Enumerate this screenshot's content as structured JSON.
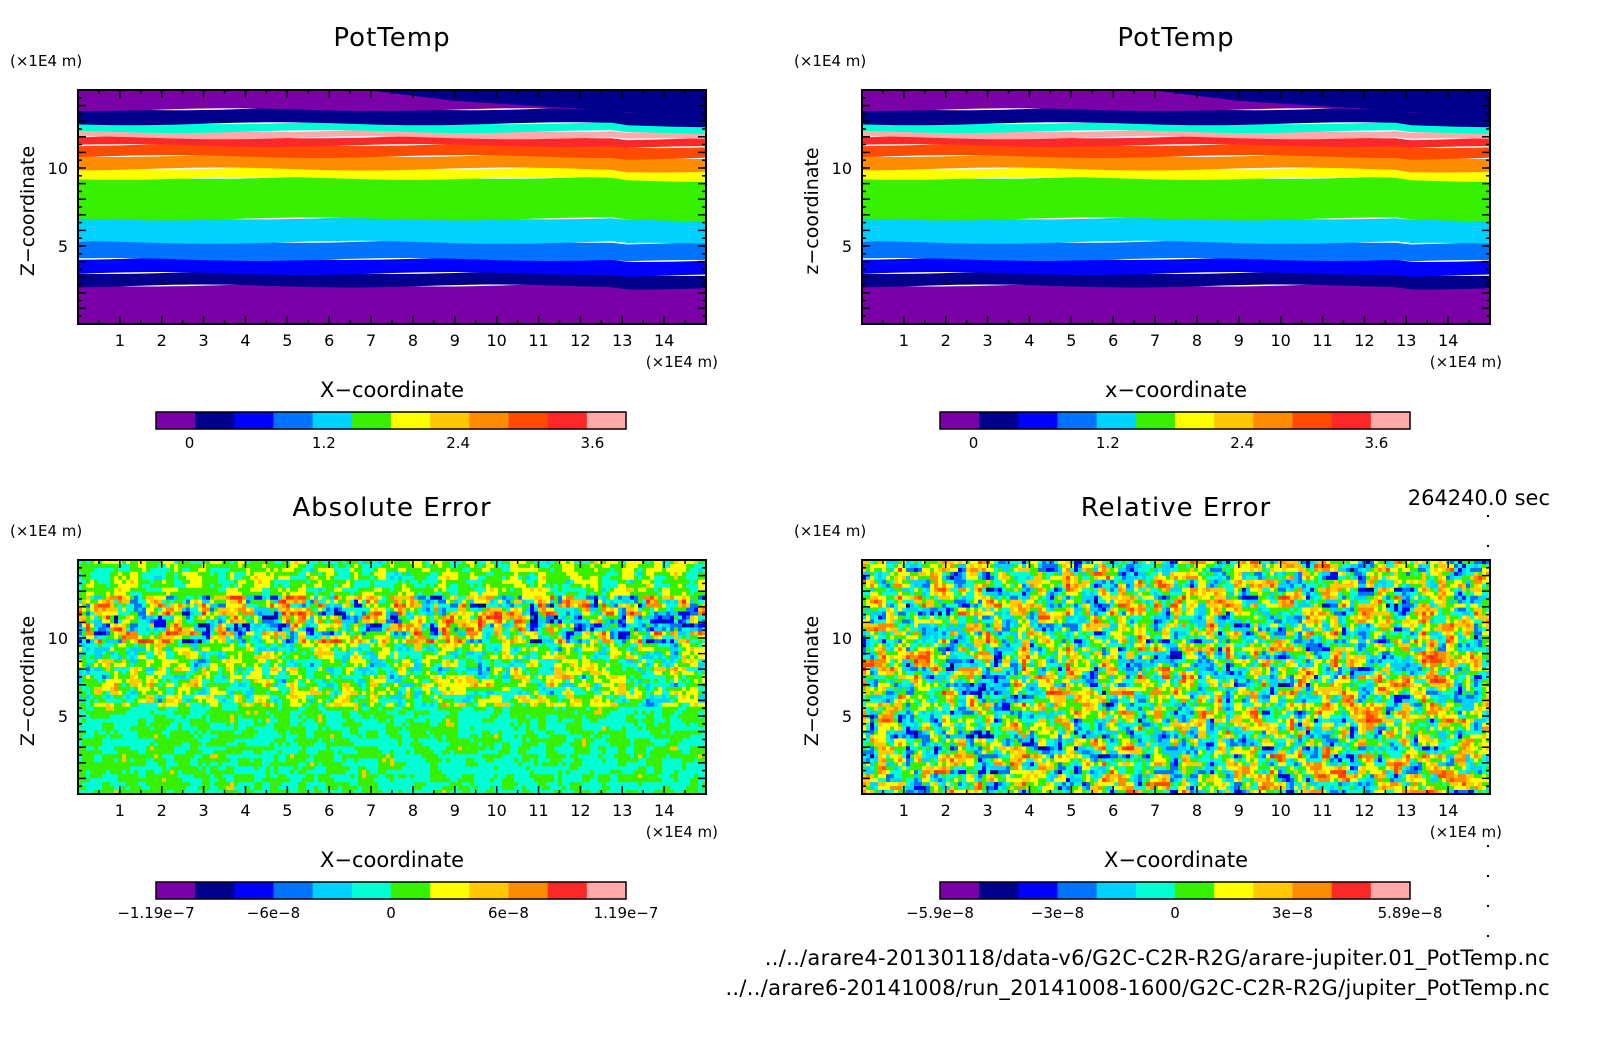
{
  "time_label": "264240.0 sec",
  "footer": {
    "line1": "../../arare4-20130118/data-v6/G2C-C2R-R2G/arare-jupiter.01_PotTemp.nc",
    "line2": "../../arare6-20141008/run_20141008-1600/G2C-C2R-R2G/jupiter_PotTemp.nc"
  },
  "colors": {
    "levels": [
      "#7a00a8",
      "#00008c",
      "#0000ff",
      "#0073ff",
      "#00d2ff",
      "#00ffd2",
      "#37f000",
      "#ffff00",
      "#ffc800",
      "#ff8c00",
      "#ff4b00",
      "#ff2828",
      "#ffaaaa"
    ]
  },
  "chart_data": [
    {
      "type": "heatmap",
      "title": "PotTemp",
      "xlabel": "X−coordinate",
      "ylabel": "Z−coordinate",
      "x_unit": "(×1E4 m)",
      "y_unit": "(×1E4 m)",
      "xlim": [
        0,
        15
      ],
      "ylim": [
        0,
        15
      ],
      "x_ticks": [
        1,
        2,
        3,
        4,
        5,
        6,
        7,
        8,
        9,
        10,
        11,
        12,
        13,
        14
      ],
      "y_ticks": [
        5,
        10
      ],
      "field": "horizontal bands",
      "z_bands": [
        {
          "z": [
            0,
            2.5
          ],
          "level": 0
        },
        {
          "z": [
            2.5,
            3.3
          ],
          "level": 1
        },
        {
          "z": [
            3.3,
            4.2
          ],
          "level": 2
        },
        {
          "z": [
            4.2,
            5.3
          ],
          "level": 3
        },
        {
          "z": [
            5.3,
            6.8
          ],
          "level": 4
        },
        {
          "z": [
            6.8,
            9.4
          ],
          "level": 6
        },
        {
          "z": [
            9.4,
            10.0
          ],
          "level": 7
        },
        {
          "z": [
            10.0,
            10.8
          ],
          "level": 9
        },
        {
          "z": [
            10.8,
            11.5
          ],
          "level": 10
        },
        {
          "z": [
            11.5,
            12.0
          ],
          "level": 11
        },
        {
          "z": [
            12.0,
            12.4
          ],
          "level": 12
        },
        {
          "z": [
            12.4,
            12.9
          ],
          "level": 5
        },
        {
          "z": [
            12.9,
            13.8
          ],
          "level": 1
        },
        {
          "z": [
            13.8,
            15.0
          ],
          "level": 0
        }
      ],
      "colorbar": {
        "ticks": [
          "0",
          "1.2",
          "2.4",
          "3.6"
        ],
        "range": [
          -0.3,
          3.9
        ]
      }
    },
    {
      "type": "heatmap",
      "title": "PotTemp",
      "xlabel": "x−coordinate",
      "ylabel": "z−coordinate",
      "x_unit": "(×1E4 m)",
      "y_unit": "(×1E4 m)",
      "xlim": [
        0,
        15
      ],
      "ylim": [
        0,
        15
      ],
      "x_ticks": [
        1,
        2,
        3,
        4,
        5,
        6,
        7,
        8,
        9,
        10,
        11,
        12,
        13,
        14
      ],
      "y_ticks": [
        5,
        10
      ],
      "field": "horizontal bands",
      "z_bands": [
        {
          "z": [
            0,
            2.5
          ],
          "level": 0
        },
        {
          "z": [
            2.5,
            3.3
          ],
          "level": 1
        },
        {
          "z": [
            3.3,
            4.2
          ],
          "level": 2
        },
        {
          "z": [
            4.2,
            5.3
          ],
          "level": 3
        },
        {
          "z": [
            5.3,
            6.8
          ],
          "level": 4
        },
        {
          "z": [
            6.8,
            9.4
          ],
          "level": 6
        },
        {
          "z": [
            9.4,
            10.0
          ],
          "level": 7
        },
        {
          "z": [
            10.0,
            10.8
          ],
          "level": 9
        },
        {
          "z": [
            10.8,
            11.5
          ],
          "level": 10
        },
        {
          "z": [
            11.5,
            12.0
          ],
          "level": 11
        },
        {
          "z": [
            12.0,
            12.4
          ],
          "level": 12
        },
        {
          "z": [
            12.4,
            12.9
          ],
          "level": 5
        },
        {
          "z": [
            12.9,
            13.8
          ],
          "level": 1
        },
        {
          "z": [
            13.8,
            15.0
          ],
          "level": 0
        }
      ],
      "colorbar": {
        "ticks": [
          "0",
          "1.2",
          "2.4",
          "3.6"
        ],
        "range": [
          -0.3,
          3.9
        ]
      }
    },
    {
      "type": "heatmap",
      "title": "Absolute Error",
      "xlabel": "X−coordinate",
      "ylabel": "Z−coordinate",
      "x_unit": "(×1E4 m)",
      "y_unit": "(×1E4 m)",
      "xlim": [
        0,
        15
      ],
      "ylim": [
        0,
        15
      ],
      "x_ticks": [
        1,
        2,
        3,
        4,
        5,
        6,
        7,
        8,
        9,
        10,
        11,
        12,
        13,
        14
      ],
      "y_ticks": [
        5,
        10
      ],
      "field": "noise, strongest near z=10-12",
      "colorbar": {
        "ticks": [
          "−1.19e−7",
          "−6e−8",
          "0",
          "6e−8",
          "1.19e−7"
        ],
        "range": [
          -1.19e-07,
          1.19e-07
        ]
      }
    },
    {
      "type": "heatmap",
      "title": "Relative Error",
      "xlabel": "X−coordinate",
      "ylabel": "Z−coordinate",
      "x_unit": "(×1E4 m)",
      "y_unit": "(×1E4 m)",
      "xlim": [
        0,
        15
      ],
      "ylim": [
        0,
        15
      ],
      "x_ticks": [
        1,
        2,
        3,
        4,
        5,
        6,
        7,
        8,
        9,
        10,
        11,
        12,
        13,
        14
      ],
      "y_ticks": [
        5,
        10
      ],
      "field": "uniform noise",
      "colorbar": {
        "ticks": [
          "−5.9e−8",
          "−3e−8",
          "0",
          "3e−8",
          "5.89e−8"
        ],
        "range": [
          -5.9e-08,
          5.89e-08
        ]
      }
    }
  ]
}
